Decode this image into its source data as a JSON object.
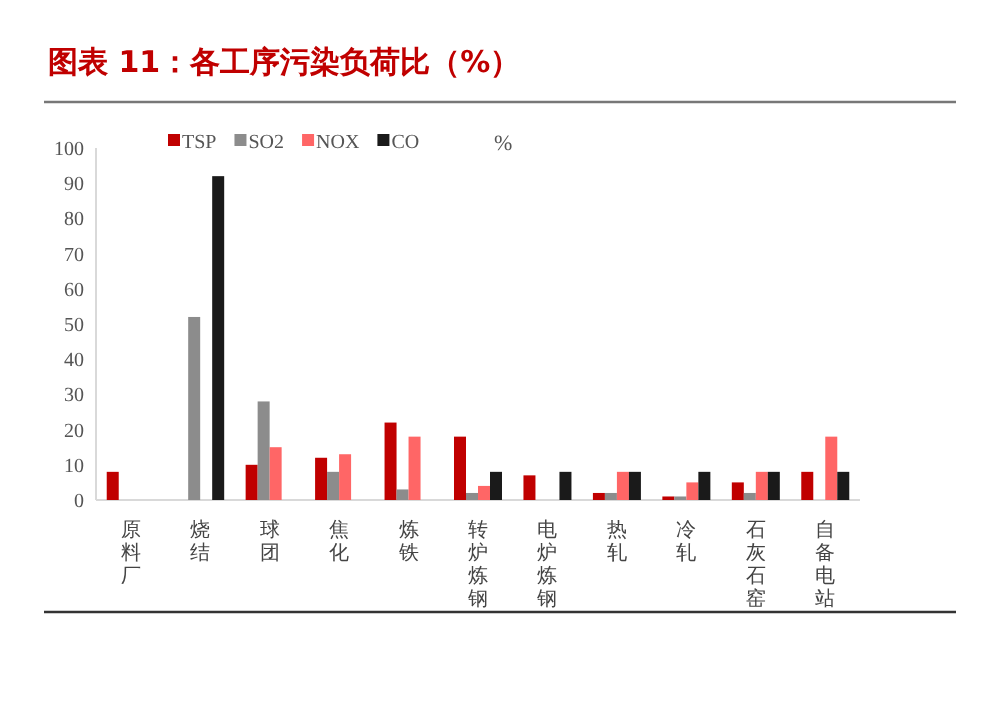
{
  "chart_data": {
    "type": "bar",
    "title": "图表 11：各工序污染负荷比（%）",
    "ylabel": "%",
    "categories": [
      "原料厂",
      "烧结",
      "球团",
      "焦化",
      "炼铁",
      "转炉炼钢",
      "电炉炼钢",
      "热轧",
      "冷轧",
      "石灰石窑",
      "自备电站"
    ],
    "series": [
      {
        "name": "TSP",
        "color": "#c00000",
        "values": [
          8,
          null,
          10,
          12,
          22,
          18,
          7,
          2,
          1,
          5,
          8
        ]
      },
      {
        "name": "SO2",
        "color": "#8c8c8c",
        "values": [
          null,
          52,
          28,
          8,
          3,
          2,
          null,
          2,
          1,
          2,
          null
        ]
      },
      {
        "name": "NOX",
        "color": "#ff6666",
        "values": [
          null,
          null,
          15,
          13,
          18,
          4,
          null,
          8,
          5,
          8,
          18
        ]
      },
      {
        "name": "CO",
        "color": "#1a1a1a",
        "values": [
          null,
          92,
          null,
          null,
          null,
          8,
          8,
          8,
          8,
          8,
          8
        ]
      }
    ],
    "ylim": [
      0,
      100
    ],
    "yticks": [
      0,
      10,
      20,
      30,
      40,
      50,
      60,
      70,
      80,
      90,
      100
    ],
    "legend": "top"
  }
}
